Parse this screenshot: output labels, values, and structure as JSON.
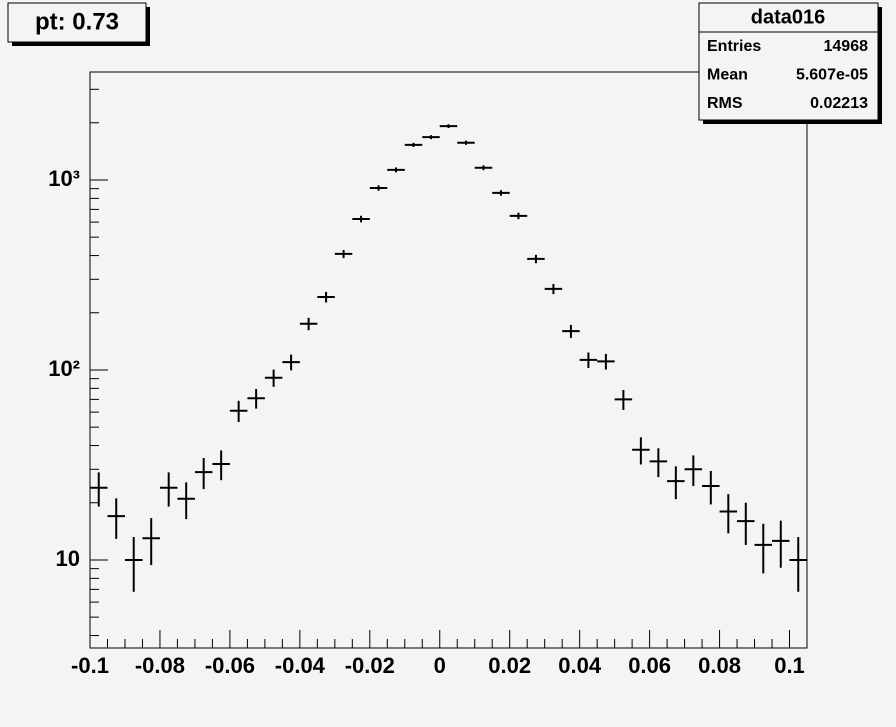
{
  "chart_data": {
    "type": "histogram",
    "title": "pt: 0.73",
    "log_y": true,
    "color": "#000000",
    "bins": [
      -0.1,
      -0.095,
      -0.09,
      -0.085,
      -0.08,
      -0.075,
      -0.07,
      -0.065,
      -0.06,
      -0.055,
      -0.05,
      -0.045,
      -0.04,
      -0.035,
      -0.03,
      -0.025,
      -0.02,
      -0.015,
      -0.01,
      -0.005,
      0,
      0.005,
      0.01,
      0.015,
      0.02,
      0.025,
      0.03,
      0.035,
      0.04,
      0.045,
      0.05,
      0.055,
      0.06,
      0.065,
      0.07,
      0.075,
      0.08,
      0.085,
      0.09,
      0.095,
      0.1,
      0.105
    ],
    "values": [
      24,
      17,
      10,
      13,
      24,
      21,
      29,
      32,
      61,
      71,
      91,
      110,
      175,
      242,
      408,
      623,
      907,
      1130,
      1530,
      1680,
      1920,
      1570,
      1160,
      855,
      647,
      384,
      267,
      160,
      113,
      111,
      70,
      38,
      33,
      26,
      30,
      24.5,
      18,
      16,
      12,
      12.6,
      10
    ],
    "errors": [
      4.9,
      4.1,
      3.2,
      3.6,
      4.9,
      4.6,
      5.4,
      5.7,
      7.8,
      8.4,
      9.5,
      10.5,
      13.2,
      15.6,
      20.2,
      25,
      30,
      33.6,
      39,
      41,
      43.8,
      39.6,
      34,
      29,
      25.4,
      19.6,
      16.3,
      12.6,
      10.6,
      10.5,
      8.4,
      6.2,
      5.7,
      5.1,
      5.5,
      4.9,
      4.2,
      4,
      3.5,
      3.5,
      3.2
    ],
    "xlim": [
      -0.1,
      0.105
    ],
    "ylim": [
      3.44,
      3700
    ],
    "xticks": [
      -0.1,
      -0.08,
      -0.06,
      -0.04,
      -0.02,
      0,
      0.02,
      0.04,
      0.06,
      0.08,
      0.1
    ],
    "xminor_ticks": [
      -0.095,
      -0.09,
      -0.085,
      -0.075,
      -0.07,
      -0.065,
      -0.055,
      -0.05,
      -0.045,
      -0.035,
      -0.03,
      -0.025,
      -0.015,
      -0.01,
      -0.005,
      0.005,
      0.01,
      0.015,
      0.025,
      0.03,
      0.035,
      0.045,
      0.05,
      0.055,
      0.065,
      0.07,
      0.075,
      0.085,
      0.09,
      0.095,
      0.105
    ],
    "yticks": [
      10,
      {
        "value": 100,
        "label": "10²"
      },
      {
        "value": 1000,
        "label": "10³"
      }
    ],
    "yminor_ticks": [
      4,
      5,
      6,
      7,
      8,
      9,
      20,
      30,
      40,
      50,
      60,
      70,
      80,
      90,
      200,
      300,
      400,
      500,
      600,
      700,
      800,
      900,
      2000,
      3000
    ],
    "stats": {
      "title": "data016",
      "rows": [
        {
          "name": "Entries",
          "value": 14968
        },
        {
          "name": "Mean",
          "value": "5.607e-05"
        },
        {
          "name": "RMS",
          "value": 0.02213
        }
      ]
    }
  }
}
